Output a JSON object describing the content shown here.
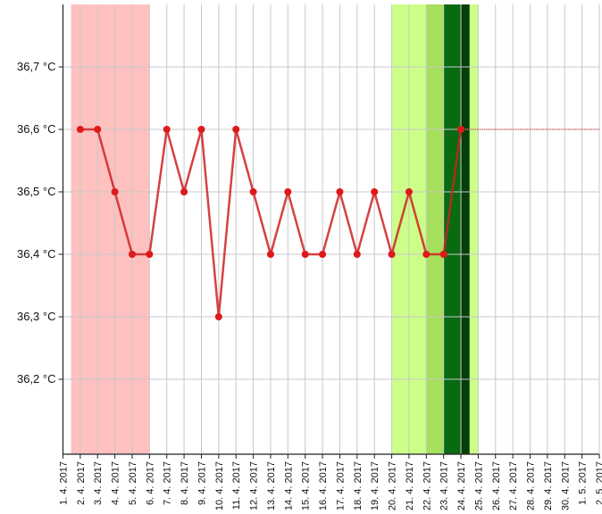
{
  "chart_data": {
    "type": "line",
    "title": "",
    "xlabel": "",
    "ylabel": "",
    "y_unit": "°C",
    "ylim": [
      36.08,
      36.8
    ],
    "yticks": [
      36.2,
      36.3,
      36.4,
      36.5,
      36.6,
      36.7
    ],
    "ytick_labels": [
      "36,2 °C",
      "36,3 °C",
      "36,4 °C",
      "36,5 °C",
      "36,6 °C",
      "36,7 °C"
    ],
    "x_labels": [
      "1. 4. 2017",
      "2. 4. 2017",
      "3. 4. 2017",
      "4. 4. 2017",
      "5. 4. 2017",
      "6. 4. 2017",
      "7. 4. 2017",
      "8. 4. 2017",
      "9. 4. 2017",
      "10. 4. 2017",
      "11. 4. 2017",
      "12. 4. 2017",
      "13. 4. 2017",
      "14. 4. 2017",
      "15. 4. 2017",
      "16. 4. 2017",
      "17. 4. 2017",
      "18. 4. 2017",
      "19. 4. 2017",
      "20. 4. 2017",
      "21. 4. 2017",
      "22. 4. 2017",
      "23. 4. 2017",
      "24. 4. 2017",
      "25. 4. 2017",
      "26. 4. 2017",
      "27. 4. 2017",
      "28. 4. 2017",
      "29. 4. 2017",
      "30. 4. 2017",
      "1. 5. 2017",
      "2. 5. 2017"
    ],
    "grid": true,
    "series": [
      {
        "x": [
          "2. 4. 2017",
          "3. 4. 2017",
          "4. 4. 2017",
          "5. 4. 2017",
          "6. 4. 2017",
          "7. 4. 2017",
          "8. 4. 2017",
          "9. 4. 2017",
          "10. 4. 2017",
          "11. 4. 2017",
          "12. 4. 2017",
          "13. 4. 2017",
          "14. 4. 2017",
          "15. 4. 2017",
          "16. 4. 2017",
          "17. 4. 2017",
          "18. 4. 2017",
          "19. 4. 2017",
          "20. 4. 2017",
          "21. 4. 2017",
          "22. 4. 2017",
          "23. 4. 2017",
          "24. 4. 2017"
        ],
        "values": [
          36.6,
          36.6,
          36.5,
          36.4,
          36.4,
          36.6,
          36.5,
          36.6,
          36.3,
          36.6,
          36.5,
          36.4,
          36.5,
          36.4,
          36.4,
          36.5,
          36.4,
          36.5,
          36.4,
          36.5,
          36.4,
          36.4,
          36.6
        ],
        "color": "#cc2222"
      }
    ],
    "reference_line": {
      "value": 36.6,
      "from": "24. 4. 2017",
      "to": "2. 5. 2017",
      "color": "#cc2222",
      "style": "dotted"
    },
    "bands": [
      {
        "from": "1. 4. 2017",
        "to": "6. 4. 2017",
        "color": "#ffc0c0"
      },
      {
        "from": "20. 4. 2017",
        "to": "25. 4. 2017",
        "color": "#ccff88"
      },
      {
        "from": "22. 4. 2017",
        "to": "23. 4. 2017",
        "color": "#a6e05c"
      },
      {
        "from": "23. 4. 2017",
        "to": "24. 4. 2017",
        "color": "#0a6a12"
      },
      {
        "from": "24. 4. 2017",
        "to": "24. 4. 2017",
        "color": "#063d08"
      }
    ],
    "colors": {
      "grid": "#c8c8c8",
      "axis": "#222222",
      "point": "#dd1a1a"
    }
  }
}
